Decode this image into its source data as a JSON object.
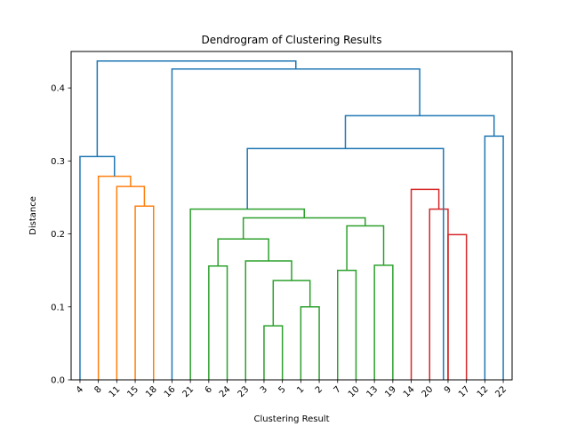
{
  "chart_data": {
    "type": "dendrogram",
    "title": "Dendrogram of Clustering Results",
    "xlabel": "Clustering Result",
    "ylabel": "Distance",
    "ylim": [
      0,
      0.45
    ],
    "yticks": [
      0.0,
      0.1,
      0.2,
      0.3,
      0.4
    ],
    "ytick_labels": [
      "0.0",
      "0.1",
      "0.2",
      "0.3",
      "0.4"
    ],
    "leaves": [
      "4",
      "8",
      "11",
      "15",
      "18",
      "16",
      "21",
      "6",
      "24",
      "23",
      "3",
      "5",
      "1",
      "2",
      "7",
      "10",
      "13",
      "19",
      "14",
      "20",
      "9",
      "17",
      "12",
      "22"
    ],
    "grid": false,
    "colors": {
      "cluster_orange": "#ff7f0e",
      "cluster_green": "#2ca02c",
      "cluster_red": "#d62728",
      "above_threshold": "#1f77b4"
    },
    "merges": [
      {
        "left": 21,
        "right": 20,
        "height": 0.199,
        "color": "cluster_red"
      },
      {
        "left": 19,
        "right": 20,
        "height": 0.234,
        "color": "cluster_red"
      },
      {
        "left": 18,
        "right": 19.5,
        "height": 0.261,
        "color": "cluster_red"
      },
      {
        "left": 11,
        "right": 10,
        "height": 0.074,
        "color": "cluster_green"
      },
      {
        "left": 12,
        "right": 13,
        "height": 0.1,
        "color": "cluster_green"
      },
      {
        "left": 10.5,
        "right": 12.5,
        "height": 0.136,
        "color": "cluster_green"
      },
      {
        "left": 9,
        "right": 11.5,
        "height": 0.163,
        "color": "cluster_green"
      },
      {
        "left": 7,
        "right": 8,
        "height": 0.156,
        "color": "cluster_green"
      },
      {
        "left": 7.5,
        "right": 10.25,
        "height": 0.193,
        "color": "cluster_green"
      },
      {
        "left": 14,
        "right": 15,
        "height": 0.15,
        "color": "cluster_green"
      },
      {
        "left": 16,
        "right": 17,
        "height": 0.157,
        "color": "cluster_green"
      },
      {
        "left": 14.5,
        "right": 16.5,
        "height": 0.211,
        "color": "cluster_green"
      },
      {
        "left": 8.875,
        "right": 15.5,
        "height": 0.222,
        "color": "cluster_green"
      },
      {
        "left": 6,
        "right": 12.1875,
        "height": 0.234,
        "color": "cluster_green"
      },
      {
        "left": 3,
        "right": 4,
        "height": 0.238,
        "color": "cluster_orange"
      },
      {
        "left": 2,
        "right": 3.5,
        "height": 0.265,
        "color": "cluster_orange"
      },
      {
        "left": 1,
        "right": 2.75,
        "height": 0.279,
        "color": "cluster_orange"
      },
      {
        "left": 0,
        "right": 1.875,
        "height": 0.306,
        "color": "above_threshold"
      },
      {
        "left": 9.09375,
        "right": 19.75,
        "height": 0.317,
        "color": "above_threshold"
      },
      {
        "left": 22,
        "right": 23,
        "height": 0.334,
        "color": "above_threshold"
      },
      {
        "left": 14.421875,
        "right": 22.5,
        "height": 0.362,
        "color": "above_threshold"
      },
      {
        "left": 5,
        "right": 18.4609375,
        "height": 0.426,
        "color": "above_threshold"
      },
      {
        "left": 0.9375,
        "right": 11.73046875,
        "height": 0.437,
        "color": "above_threshold"
      }
    ]
  }
}
